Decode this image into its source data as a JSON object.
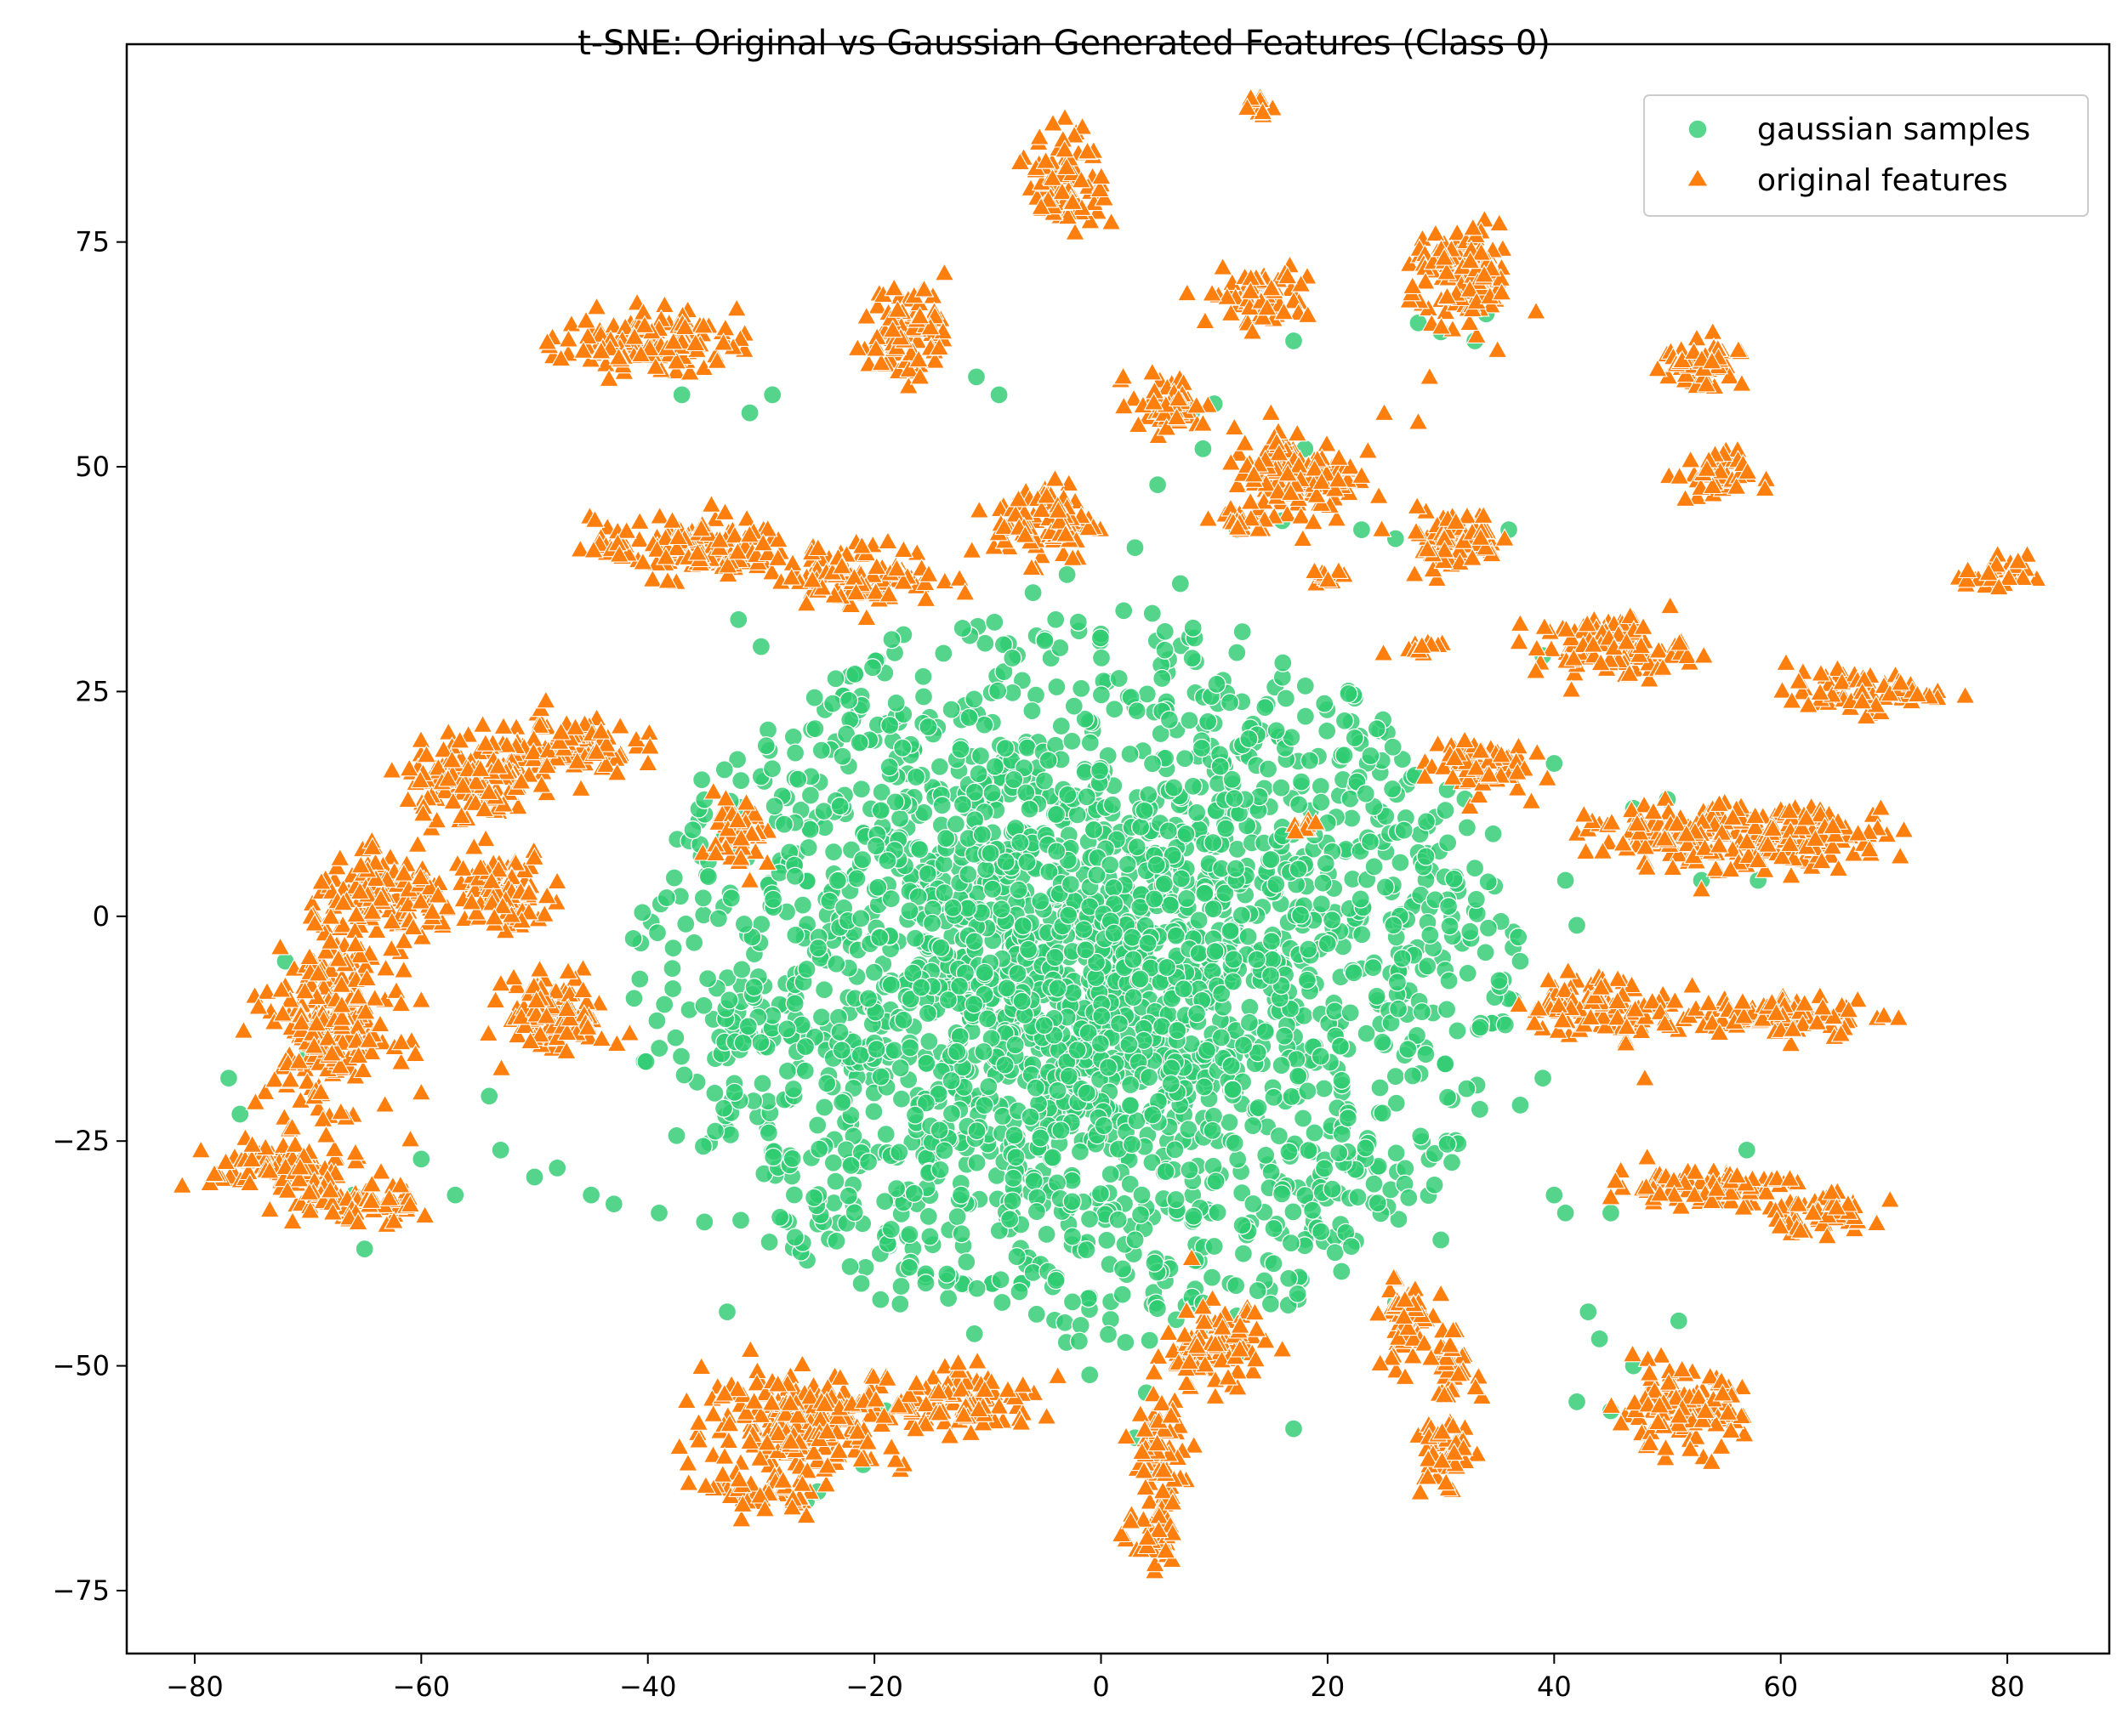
{
  "chart_data": {
    "type": "scatter",
    "title": "t-SNE: Original vs Gaussian Generated Features (Class 0)",
    "xlabel": "",
    "ylabel": "",
    "xlim": [
      -86,
      89
    ],
    "ylim": [
      -82,
      97
    ],
    "xticks": [
      -80,
      -60,
      -40,
      -20,
      0,
      20,
      40,
      60,
      80
    ],
    "yticks": [
      75,
      50,
      25,
      0,
      -25,
      -50,
      -75
    ],
    "xtick_labels": [
      "−80",
      "−60",
      "−40",
      "−20",
      "0",
      "20",
      "40",
      "60",
      "80"
    ],
    "ytick_labels": [
      "75",
      "50",
      "25",
      "0",
      "−25",
      "−50",
      "−75"
    ],
    "grid": false,
    "legend_position": "top-right",
    "colors": {
      "gaussian": "#2ecc71",
      "original": "#ff7f0e"
    },
    "series": [
      {
        "name": "gaussian samples",
        "marker": "circle",
        "color": "#2ecc71",
        "core": {
          "center": [
            -2,
            -7
          ],
          "radius": [
            36,
            40
          ]
        },
        "scattered_points": [
          [
            -77,
            -18
          ],
          [
            -76,
            -22
          ],
          [
            -72,
            -5
          ],
          [
            -70,
            -15
          ],
          [
            -66,
            -31
          ],
          [
            -65,
            -37
          ],
          [
            -60,
            -27
          ],
          [
            -57,
            -31
          ],
          [
            -54,
            -20
          ],
          [
            -53,
            -26
          ],
          [
            -50,
            -29
          ],
          [
            -48,
            -28
          ],
          [
            -45,
            -31
          ],
          [
            -43,
            -32
          ],
          [
            -39,
            -33
          ],
          [
            -35,
            -34
          ],
          [
            -33,
            -44
          ],
          [
            -32,
            33
          ],
          [
            -30,
            30
          ],
          [
            -29,
            58
          ],
          [
            -31,
            56
          ],
          [
            -37,
            58
          ],
          [
            -26,
            -65
          ],
          [
            -25,
            -64
          ],
          [
            -21,
            -61
          ],
          [
            -19,
            -55
          ],
          [
            -11,
            60
          ],
          [
            -9,
            58
          ],
          [
            -6,
            36
          ],
          [
            -3,
            38
          ],
          [
            3,
            41
          ],
          [
            5,
            48
          ],
          [
            8,
            56
          ],
          [
            9,
            52
          ],
          [
            10,
            57
          ],
          [
            12,
            43
          ],
          [
            16,
            44
          ],
          [
            18,
            52
          ],
          [
            17,
            64
          ],
          [
            28,
            66
          ],
          [
            30,
            65
          ],
          [
            34,
            67
          ],
          [
            33,
            64
          ],
          [
            23,
            43
          ],
          [
            26,
            42
          ],
          [
            36,
            43
          ],
          [
            40,
            17
          ],
          [
            39,
            29
          ],
          [
            41,
            4
          ],
          [
            42,
            -1
          ],
          [
            37,
            -5
          ],
          [
            37,
            -21
          ],
          [
            39,
            -18
          ],
          [
            40,
            -31
          ],
          [
            41,
            -33
          ],
          [
            43,
            -44
          ],
          [
            44,
            -47
          ],
          [
            42,
            -54
          ],
          [
            45,
            -55
          ],
          [
            47,
            -50
          ],
          [
            49,
            -10
          ],
          [
            47,
            12
          ],
          [
            50,
            13
          ],
          [
            53,
            4
          ],
          [
            58,
            4
          ],
          [
            45,
            -33
          ],
          [
            51,
            -45
          ],
          [
            57,
            -26
          ],
          [
            30,
            -36
          ],
          [
            26,
            -43
          ],
          [
            17,
            -57
          ],
          [
            3,
            -58
          ],
          [
            5,
            -62
          ],
          [
            -1,
            -51
          ],
          [
            4,
            -53
          ],
          [
            9,
            -43
          ],
          [
            12,
            -49
          ],
          [
            -4,
            33
          ],
          [
            2,
            34
          ],
          [
            7,
            37
          ]
        ]
      },
      {
        "name": "original features",
        "marker": "triangle",
        "color": "#ff7f0e",
        "clusters": [
          {
            "center": [
              -40,
              64
            ],
            "spread": [
              7,
              3
            ]
          },
          {
            "center": [
              -17,
              65
            ],
            "spread": [
              3,
              5
            ]
          },
          {
            "center": [
              -3,
              82
            ],
            "spread": [
              3,
              5
            ]
          },
          {
            "center": [
              14,
              90
            ],
            "spread": [
              1.5,
              1
            ]
          },
          {
            "center": [
              14,
              69
            ],
            "spread": [
              4,
              3
            ]
          },
          {
            "center": [
              32,
              71
            ],
            "spread": [
              4,
              5
            ]
          },
          {
            "center": [
              53,
              61
            ],
            "spread": [
              3,
              3
            ]
          },
          {
            "center": [
              54,
              49
            ],
            "spread": [
              3,
              2.5
            ]
          },
          {
            "center": [
              79,
              38
            ],
            "spread": [
              2.5,
              2
            ]
          },
          {
            "center": [
              6,
              57
            ],
            "spread": [
              3,
              3
            ]
          },
          {
            "center": [
              -5,
              44
            ],
            "spread": [
              4,
              4
            ]
          },
          {
            "center": [
              17,
              49
            ],
            "spread": [
              5,
              5
            ]
          },
          {
            "center": [
              12,
              44
            ],
            "spread": [
              2,
              1
            ]
          },
          {
            "center": [
              31,
              42
            ],
            "spread": [
              4,
              3
            ]
          },
          {
            "center": [
              20,
              38
            ],
            "spread": [
              1,
              1
            ]
          },
          {
            "center": [
              28,
              30
            ],
            "spread": [
              2,
              1
            ]
          },
          {
            "center": [
              45,
              30
            ],
            "spread": [
              6,
              3
            ]
          },
          {
            "center": [
              67,
              25
            ],
            "spread": [
              6,
              2
            ]
          },
          {
            "center": [
              33,
              17
            ],
            "spread": [
              4,
              3
            ]
          },
          {
            "center": [
              -36,
              41
            ],
            "spread": [
              8,
              3
            ]
          },
          {
            "center": [
              -21,
              38
            ],
            "spread": [
              6,
              3
            ]
          },
          {
            "center": [
              -48,
              19
            ],
            "spread": [
              6,
              3
            ]
          },
          {
            "center": [
              -56,
              15
            ],
            "spread": [
              5,
              4
            ]
          },
          {
            "center": [
              -32,
              9
            ],
            "spread": [
              2,
              4
            ]
          },
          {
            "center": [
              18,
              10
            ],
            "spread": [
              1,
              1
            ]
          },
          {
            "center": [
              -63,
              2
            ],
            "spread": [
              6,
              4
            ]
          },
          {
            "center": [
              -53,
              3
            ],
            "spread": [
              4,
              4
            ]
          },
          {
            "center": [
              -68,
              -12
            ],
            "spread": [
              5,
              8
            ]
          },
          {
            "center": [
              -48,
              -11
            ],
            "spread": [
              4,
              4
            ]
          },
          {
            "center": [
              -72,
              -28
            ],
            "spread": [
              6,
              3
            ]
          },
          {
            "center": [
              -66,
              -32
            ],
            "spread": [
              5,
              2
            ]
          },
          {
            "center": [
              52,
              9
            ],
            "spread": [
              8,
              3
            ]
          },
          {
            "center": [
              63,
              9
            ],
            "spread": [
              6,
              3
            ]
          },
          {
            "center": [
              44,
              -10
            ],
            "spread": [
              6,
              3
            ]
          },
          {
            "center": [
              60,
              -11
            ],
            "spread": [
              8,
              2
            ]
          },
          {
            "center": [
              53,
              -30
            ],
            "spread": [
              7,
              2
            ]
          },
          {
            "center": [
              63,
              -33
            ],
            "spread": [
              5,
              2
            ]
          },
          {
            "center": [
              51,
              -55
            ],
            "spread": [
              5,
              4
            ]
          },
          {
            "center": [
              -26,
              -56
            ],
            "spread": [
              8,
              5
            ]
          },
          {
            "center": [
              -12,
              -54
            ],
            "spread": [
              6,
              3
            ]
          },
          {
            "center": [
              -30,
              -64
            ],
            "spread": [
              4,
              2
            ]
          },
          {
            "center": [
              10,
              -48
            ],
            "spread": [
              4,
              4
            ]
          },
          {
            "center": [
              5,
              -60
            ],
            "spread": [
              2,
              6
            ]
          },
          {
            "center": [
              5,
              -70
            ],
            "spread": [
              2,
              3
            ]
          },
          {
            "center": [
              27,
              -45
            ],
            "spread": [
              2,
              5
            ]
          },
          {
            "center": [
              30,
              -60
            ],
            "spread": [
              2,
              4
            ]
          },
          {
            "center": [
              31,
              -50
            ],
            "spread": [
              2,
              3
            ]
          }
        ],
        "scattered_points": [
          [
            25,
            56
          ],
          [
            28,
            55
          ],
          [
            22,
            50
          ],
          [
            23,
            49
          ],
          [
            21,
            51
          ],
          [
            15,
            56
          ],
          [
            35,
            63
          ],
          [
            29,
            60
          ],
          [
            -49,
            24
          ],
          [
            -12,
            36
          ],
          [
            53,
            3
          ],
          [
            30,
            -42
          ],
          [
            8,
            -38
          ],
          [
            48,
            -18
          ],
          [
            -34,
            7
          ],
          [
            -31,
            4
          ]
        ]
      }
    ]
  }
}
